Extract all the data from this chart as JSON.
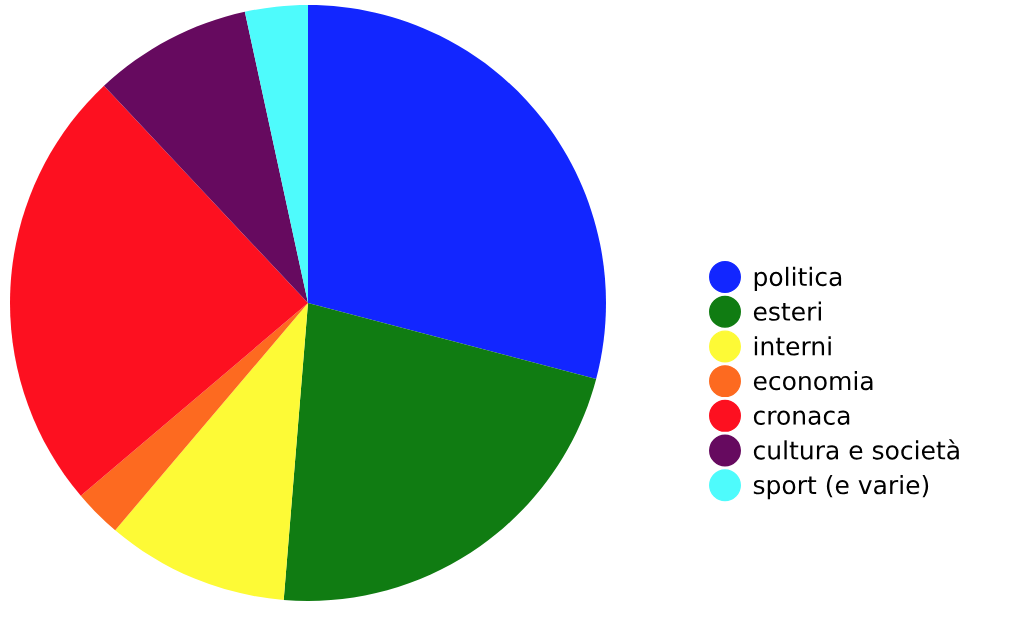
{
  "chart_data": {
    "type": "pie",
    "categories": [
      "politica",
      "esteri",
      "interni",
      "economia",
      "cronaca",
      "cultura e società",
      "sport (e varie)"
    ],
    "values": [
      29.1,
      22.2,
      9.9,
      2.6,
      24.2,
      8.6,
      3.4
    ],
    "colors": [
      "#1226ff",
      "#107c12",
      "#fdfa36",
      "#fd6a20",
      "#fd1020",
      "#660a5f",
      "#4efbfc"
    ],
    "legend": "right"
  }
}
